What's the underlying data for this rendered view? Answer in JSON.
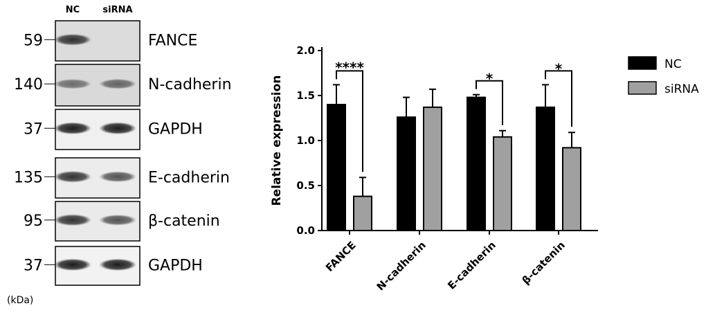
{
  "western_blot": {
    "lanes": [
      "NC",
      "siRNA"
    ],
    "unit": "(kDa)",
    "blots": [
      {
        "marker": "59",
        "label": "FANCE",
        "nc": 0.85,
        "si": 0.0,
        "bg": "#dcdcdc"
      },
      {
        "marker": "140",
        "label": "N-cadherin",
        "nc": 0.55,
        "si": 0.6,
        "bg": "#d9d9d9"
      },
      {
        "marker": "37",
        "label": "GAPDH",
        "nc": 0.95,
        "si": 0.95,
        "bg": "#f0f0f0"
      },
      {
        "marker": "135",
        "label": "E-cadherin",
        "nc": 0.85,
        "si": 0.7,
        "bg": "#ececec"
      },
      {
        "marker": "95",
        "label": "β-catenin",
        "nc": 0.85,
        "si": 0.7,
        "bg": "#eaeaea"
      },
      {
        "marker": "37",
        "label": "GAPDH",
        "nc": 0.95,
        "si": 0.95,
        "bg": "#f2f2f2"
      }
    ]
  },
  "chart_data": {
    "type": "bar",
    "ylabel": "Relative expression",
    "ylim": [
      0,
      2.0
    ],
    "yticks": [
      "0.0",
      "0.5",
      "1.0",
      "1.5",
      "2.0"
    ],
    "categories": [
      "FANCE",
      "N-cadherin",
      "E-cadherin",
      "β-catenin"
    ],
    "series": [
      {
        "name": "NC",
        "color": "#000000",
        "values": [
          1.4,
          1.26,
          1.48,
          1.37
        ],
        "errors": [
          0.22,
          0.22,
          0.03,
          0.25
        ]
      },
      {
        "name": "siRNA",
        "color": "#a0a0a0",
        "values": [
          0.38,
          1.37,
          1.04,
          0.92
        ],
        "errors": [
          0.21,
          0.2,
          0.07,
          0.17
        ]
      }
    ],
    "significance": [
      "****",
      "",
      "*",
      "*"
    ],
    "legend": "right"
  }
}
